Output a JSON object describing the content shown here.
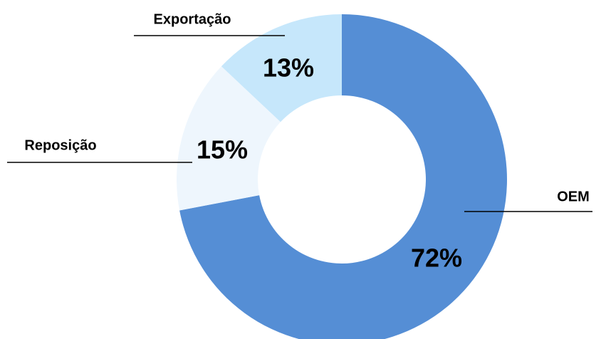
{
  "chart_data": {
    "type": "donut",
    "categories": [
      "OEM",
      "Reposição",
      "Exportação"
    ],
    "values": [
      72,
      15,
      13
    ],
    "value_labels": [
      "72%",
      "15%",
      "13%"
    ],
    "colors": [
      "#558ed5",
      "#eef6fd",
      "#c6e7fb"
    ]
  }
}
